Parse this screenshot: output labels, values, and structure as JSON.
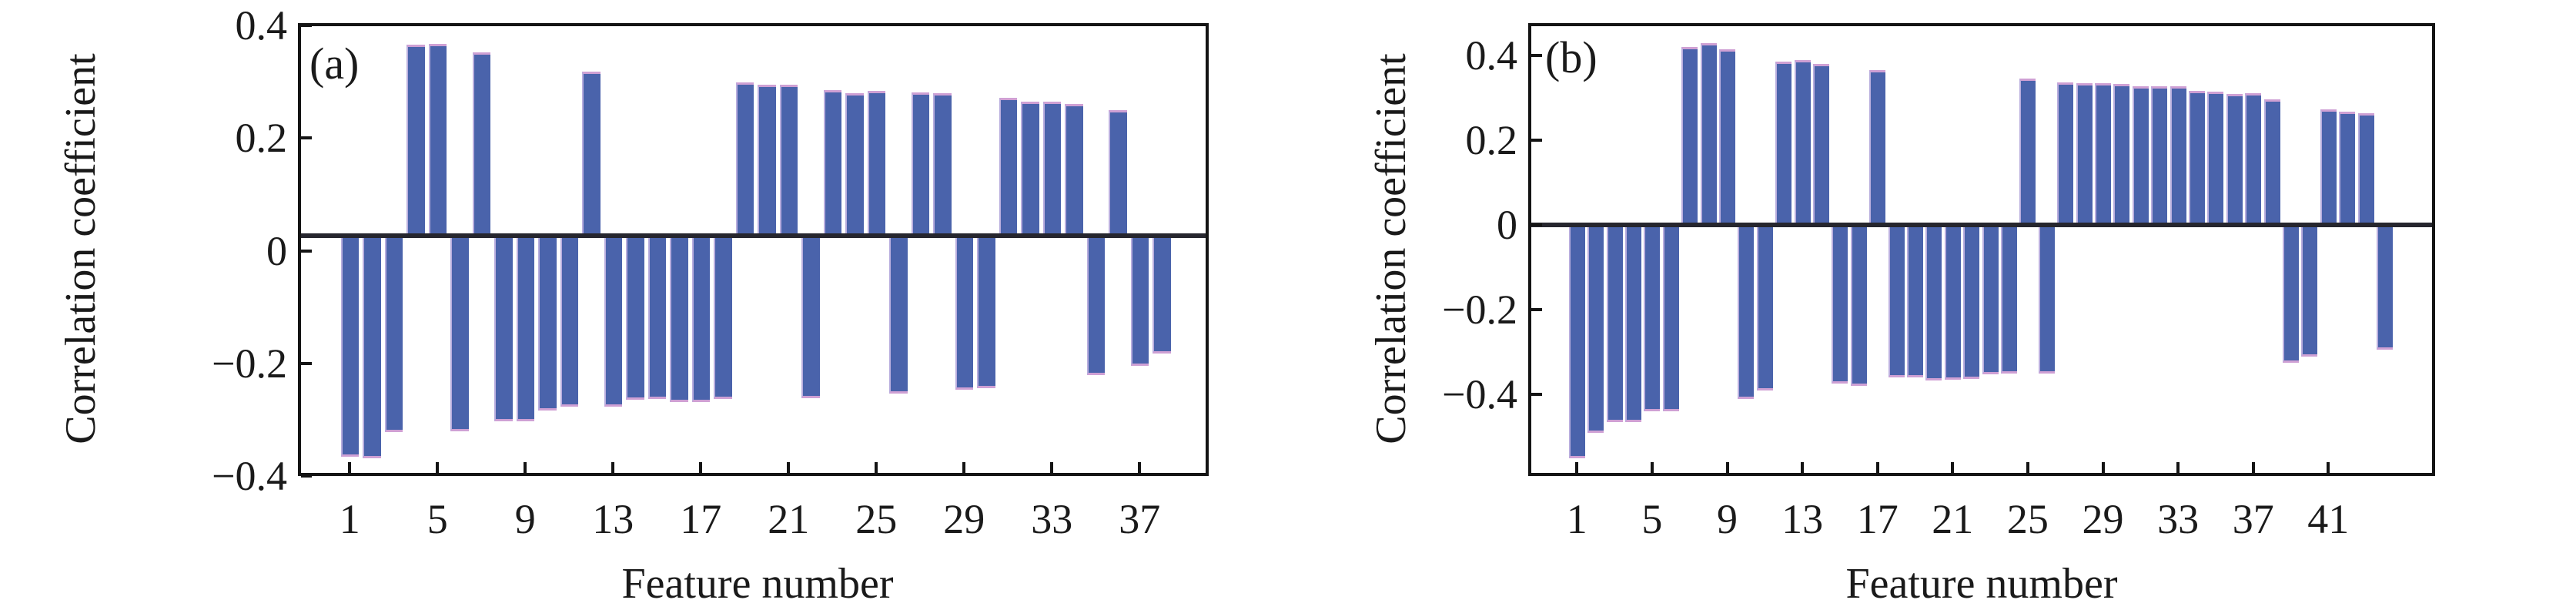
{
  "chart_data": [
    {
      "type": "bar",
      "panel_label": "(a)",
      "xlabel": "Feature number",
      "ylabel": "Correlation coefficient",
      "legend": null,
      "grid": false,
      "n_features": 38,
      "x": [
        1,
        2,
        3,
        4,
        5,
        6,
        7,
        8,
        9,
        10,
        11,
        12,
        13,
        14,
        15,
        16,
        17,
        18,
        19,
        20,
        21,
        22,
        23,
        24,
        25,
        26,
        27,
        28,
        29,
        30,
        31,
        32,
        33,
        34,
        35,
        36,
        37,
        38
      ],
      "values": [
        -0.365,
        -0.368,
        -0.322,
        0.365,
        0.367,
        -0.32,
        0.352,
        -0.302,
        -0.302,
        -0.284,
        -0.277,
        0.318,
        -0.277,
        -0.265,
        -0.263,
        -0.268,
        -0.268,
        -0.263,
        0.299,
        0.295,
        0.295,
        -0.261,
        0.285,
        0.28,
        0.283,
        -0.254,
        0.281,
        0.279,
        -0.247,
        -0.244,
        0.271,
        0.264,
        0.264,
        0.26,
        -0.221,
        0.249,
        -0.204,
        -0.183
      ],
      "x_tick_values": [
        1,
        5,
        9,
        13,
        17,
        21,
        25,
        29,
        33,
        37
      ],
      "x_tick_labels": [
        "1",
        "5",
        "9",
        "13",
        "17",
        "21",
        "25",
        "29",
        "33",
        "37"
      ],
      "y_tick_values": [
        0.4,
        0.2,
        0,
        -0.2,
        -0.4
      ],
      "y_tick_labels": [
        "0.4",
        "0.2",
        "0",
        "−0.2",
        "−0.4"
      ],
      "ylim": [
        -0.4,
        0.4
      ],
      "baseline_value": 0.027,
      "bar_color": "#4a63ab"
    },
    {
      "type": "bar",
      "panel_label": "(b)",
      "xlabel": "Feature number",
      "ylabel": "Correlation coefficient",
      "legend": null,
      "grid": false,
      "n_features": 44,
      "x": [
        1,
        2,
        3,
        4,
        5,
        6,
        7,
        8,
        9,
        10,
        11,
        12,
        13,
        14,
        15,
        16,
        17,
        18,
        19,
        20,
        21,
        22,
        23,
        24,
        25,
        26,
        27,
        28,
        29,
        30,
        31,
        32,
        33,
        34,
        35,
        36,
        37,
        38,
        39,
        40,
        41,
        42,
        43,
        44
      ],
      "values": [
        -0.55,
        -0.49,
        -0.465,
        -0.465,
        -0.44,
        -0.44,
        0.42,
        0.43,
        0.415,
        -0.41,
        -0.39,
        0.385,
        0.39,
        0.38,
        -0.375,
        -0.38,
        0.365,
        -0.36,
        -0.36,
        -0.368,
        -0.365,
        -0.364,
        -0.352,
        -0.35,
        0.345,
        -0.35,
        0.337,
        0.335,
        0.334,
        0.332,
        0.327,
        0.328,
        0.328,
        0.317,
        0.315,
        0.31,
        0.311,
        0.296,
        -0.325,
        -0.31,
        0.272,
        0.267,
        0.264,
        -0.295
      ],
      "x_tick_values": [
        1,
        5,
        9,
        13,
        17,
        21,
        25,
        29,
        33,
        37,
        41
      ],
      "x_tick_labels": [
        "1",
        "5",
        "9",
        "13",
        "17",
        "21",
        "25",
        "29",
        "33",
        "37",
        "41"
      ],
      "y_tick_values": [
        0.4,
        0.2,
        0,
        -0.2,
        -0.4
      ],
      "y_tick_labels": [
        "0.4",
        "0.2",
        "0",
        "−0.2",
        "−0.4"
      ],
      "ylim": [
        -0.59,
        0.48
      ],
      "baseline_value": 0,
      "bar_color": "#4a63ab"
    }
  ],
  "colors": {
    "bar": "#4a63ab",
    "bar_edge_highlight": "#cfa0d4",
    "frame": "#141414",
    "baseline": "#26262e",
    "background": "#ffffff",
    "text": "#1a1a1a"
  }
}
